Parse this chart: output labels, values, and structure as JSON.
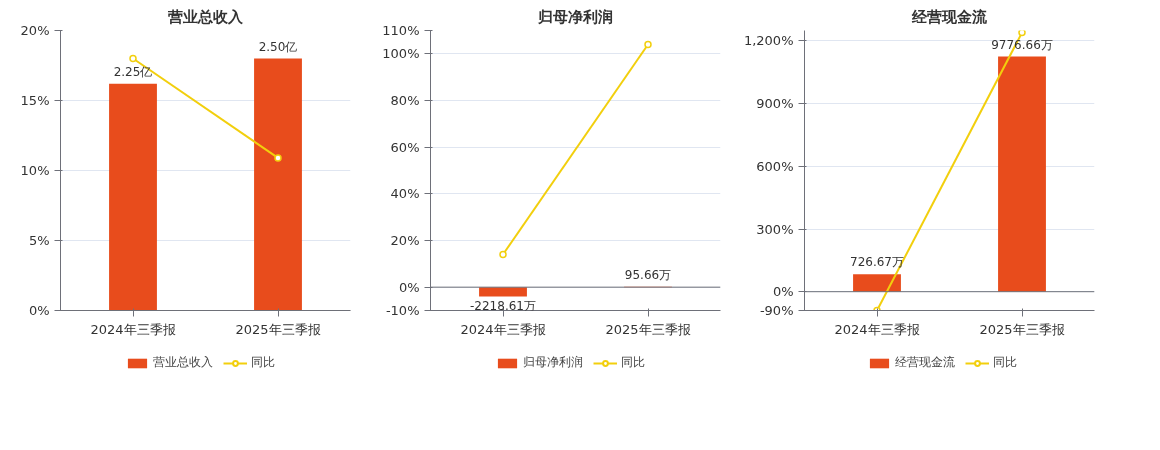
{
  "chart_data": [
    {
      "type": "bar",
      "title": "营业总收入",
      "categories": [
        "2024年三季报",
        "2025年三季报"
      ],
      "ylim": [
        0,
        20
      ],
      "yticks": [
        {
          "value": 0,
          "label": "0%"
        },
        {
          "value": 5,
          "label": "5%"
        },
        {
          "value": 10,
          "label": "10%"
        },
        {
          "value": 15,
          "label": "15%"
        },
        {
          "value": 20,
          "label": "20%"
        }
      ],
      "grid": "y",
      "legend": "bottom",
      "series": [
        {
          "name": "营业总收入",
          "axis": "y2",
          "color": "#e84c1c",
          "values": [
            2.25,
            2.5
          ],
          "value_labels": [
            "2.25亿",
            "2.50亿"
          ]
        },
        {
          "name": "同比",
          "type": "line",
          "color": "#f2cf0d",
          "marker": "circle",
          "values": [
            18.0,
            10.9
          ]
        }
      ]
    },
    {
      "type": "bar",
      "title": "归母净利润",
      "categories": [
        "2024年三季报",
        "2025年三季报"
      ],
      "ylim": [
        -10,
        110
      ],
      "yticks": [
        {
          "value": -10,
          "label": "-10%"
        },
        {
          "value": 0,
          "label": "0%"
        },
        {
          "value": 20,
          "label": "20%"
        },
        {
          "value": 40,
          "label": "40%"
        },
        {
          "value": 60,
          "label": "60%"
        },
        {
          "value": 80,
          "label": "80%"
        },
        {
          "value": 100,
          "label": "100%"
        },
        {
          "value": 110,
          "label": "110%"
        }
      ],
      "grid": "y",
      "legend": "bottom",
      "series": [
        {
          "name": "归母净利润",
          "axis": "y2",
          "color": "#e84c1c",
          "values": [
            -2218.61,
            95.66
          ],
          "value_labels": [
            "-2218.61万",
            "95.66万"
          ]
        },
        {
          "name": "同比",
          "type": "line",
          "color": "#f2cf0d",
          "marker": "circle",
          "values": [
            14,
            104
          ]
        }
      ]
    },
    {
      "type": "bar",
      "title": "经营现金流",
      "categories": [
        "2024年三季报",
        "2025年三季报"
      ],
      "ylim": [
        -90,
        1250
      ],
      "yticks": [
        {
          "value": -90,
          "label": "-90%"
        },
        {
          "value": 0,
          "label": "0%"
        },
        {
          "value": 300,
          "label": "300%"
        },
        {
          "value": 600,
          "label": "600%"
        },
        {
          "value": 900,
          "label": "900%"
        },
        {
          "value": 1200,
          "label": "1,200%"
        }
      ],
      "grid": "y",
      "legend": "bottom",
      "series": [
        {
          "name": "经营现金流",
          "axis": "y2",
          "color": "#e84c1c",
          "values": [
            726.67,
            9776.66
          ],
          "value_labels": [
            "726.67万",
            "9776.66万"
          ]
        },
        {
          "name": "同比",
          "type": "line",
          "color": "#f2cf0d",
          "marker": "circle",
          "values": [
            -90,
            1240
          ]
        }
      ]
    }
  ]
}
